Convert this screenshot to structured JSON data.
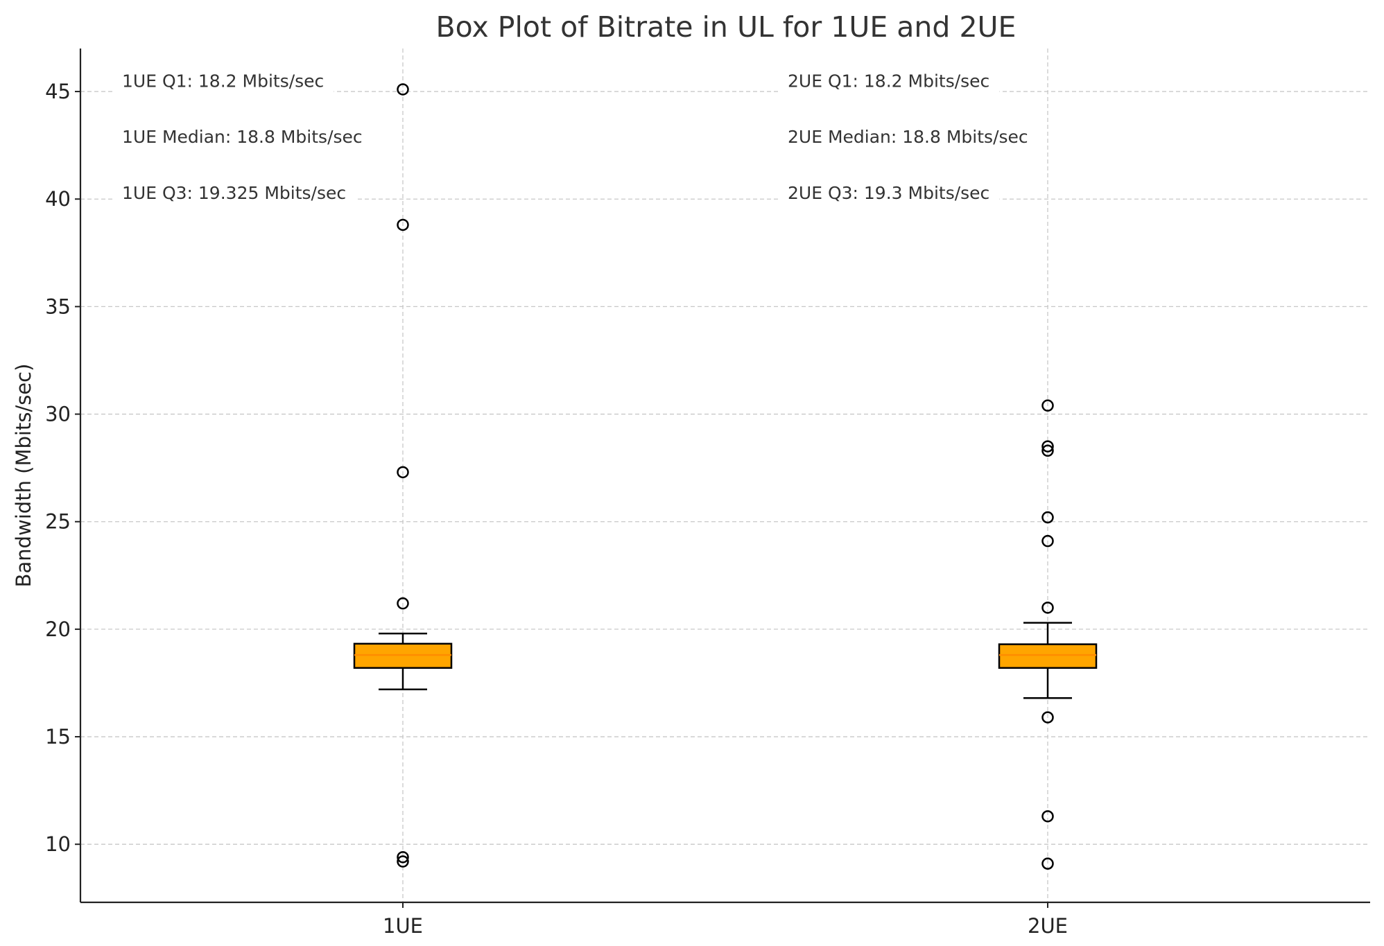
{
  "chart_data": {
    "type": "box",
    "title": "Box Plot of Bitrate in UL for 1UE and 2UE",
    "xlabel": "",
    "ylabel": "Bandwidth (Mbits/sec)",
    "ylim": [
      7.3,
      47.0
    ],
    "yticks": [
      10,
      15,
      20,
      25,
      30,
      35,
      40,
      45
    ],
    "grid": true,
    "colors": {
      "box_fill": "#FFA500",
      "median": "#FF8C00",
      "edge": "#000000",
      "grid": "#c8c8c8"
    },
    "categories": [
      "1UE",
      "2UE"
    ],
    "series": [
      {
        "category": "1UE",
        "whisker_low": 17.2,
        "q1": 18.2,
        "median": 18.8,
        "q3": 19.325,
        "whisker_high": 19.8,
        "outliers": [
          45.1,
          38.8,
          27.3,
          21.2,
          9.4,
          9.2
        ]
      },
      {
        "category": "2UE",
        "whisker_low": 16.8,
        "q1": 18.2,
        "median": 18.8,
        "q3": 19.3,
        "whisker_high": 20.3,
        "outliers": [
          30.4,
          28.5,
          28.3,
          25.2,
          24.1,
          21.0,
          15.9,
          11.3,
          9.1
        ]
      }
    ],
    "annotations": [
      {
        "group": "1UE",
        "value": 45.5,
        "text": "1UE Q1: 18.2 Mbits/sec"
      },
      {
        "group": "1UE",
        "value": 42.9,
        "text": "1UE Median: 18.8 Mbits/sec"
      },
      {
        "group": "1UE",
        "value": 40.3,
        "text": "1UE Q3: 19.325 Mbits/sec"
      },
      {
        "group": "2UE",
        "value": 45.5,
        "text": "2UE Q1: 18.2 Mbits/sec"
      },
      {
        "group": "2UE",
        "value": 42.9,
        "text": "2UE Median: 18.8 Mbits/sec"
      },
      {
        "group": "2UE",
        "value": 40.3,
        "text": "2UE Q3: 19.3 Mbits/sec"
      }
    ]
  }
}
